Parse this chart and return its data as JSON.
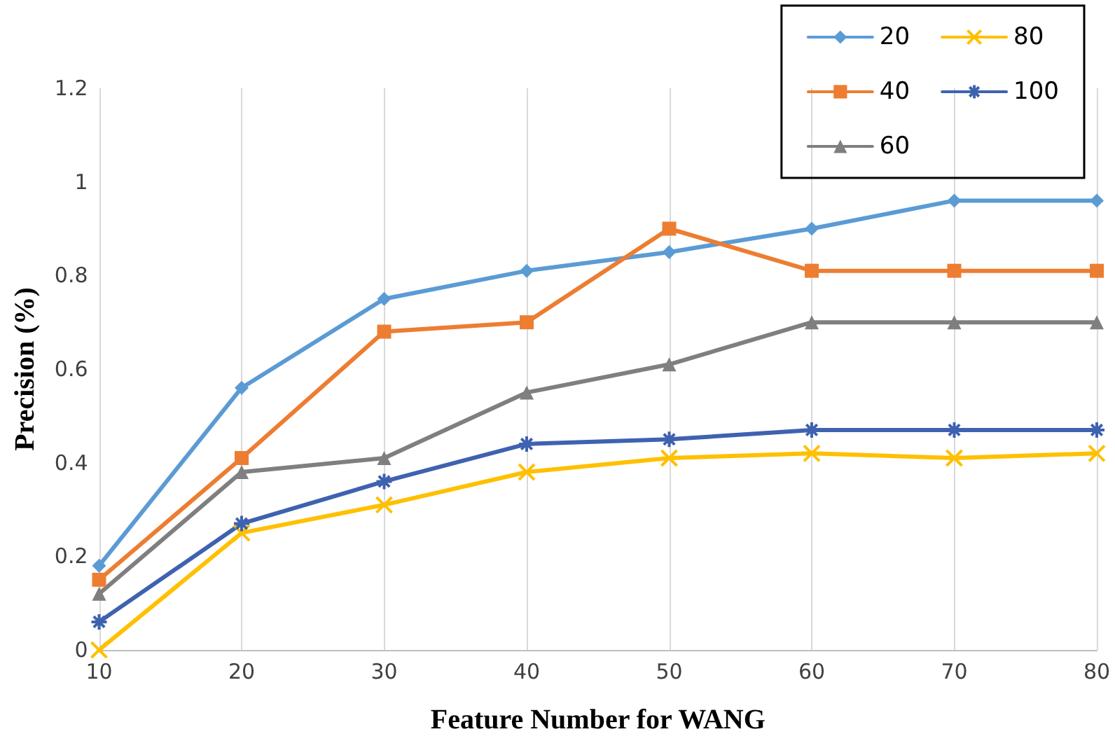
{
  "chart_data": {
    "type": "line",
    "xlabel": "Feature Number for WANG",
    "ylabel": "Precision (%)",
    "x": [
      10,
      20,
      30,
      40,
      50,
      60,
      70,
      80
    ],
    "xlim": [
      10,
      80
    ],
    "xticks": [
      10,
      20,
      30,
      40,
      50,
      60,
      70,
      80
    ],
    "ylim": [
      0,
      1.2
    ],
    "yticks": [
      0,
      0.2,
      0.4,
      0.6,
      0.8,
      1,
      1.2
    ],
    "grid": "x",
    "legend": "top right",
    "line_style": "solid",
    "series": [
      {
        "name": "20",
        "color": "#5b9bd5",
        "marker": "diamond",
        "values": [
          0.18,
          0.56,
          0.75,
          0.81,
          0.85,
          0.9,
          0.96,
          0.96
        ]
      },
      {
        "name": "40",
        "color": "#ed7d31",
        "marker": "square",
        "values": [
          0.15,
          0.41,
          0.68,
          0.7,
          0.9,
          0.81,
          0.81,
          0.81
        ]
      },
      {
        "name": "60",
        "color": "#7f7f7f",
        "marker": "triangle",
        "values": [
          0.12,
          0.38,
          0.41,
          0.55,
          0.61,
          0.7,
          0.7,
          0.7
        ]
      },
      {
        "name": "80",
        "color": "#ffc000",
        "marker": "cross",
        "values": [
          0,
          0.25,
          0.31,
          0.38,
          0.41,
          0.42,
          0.41,
          0.42
        ]
      },
      {
        "name": "100",
        "color": "#3f62b0",
        "marker": "star",
        "values": [
          0.06,
          0.27,
          0.36,
          0.44,
          0.45,
          0.47,
          0.47,
          0.47
        ]
      }
    ]
  }
}
